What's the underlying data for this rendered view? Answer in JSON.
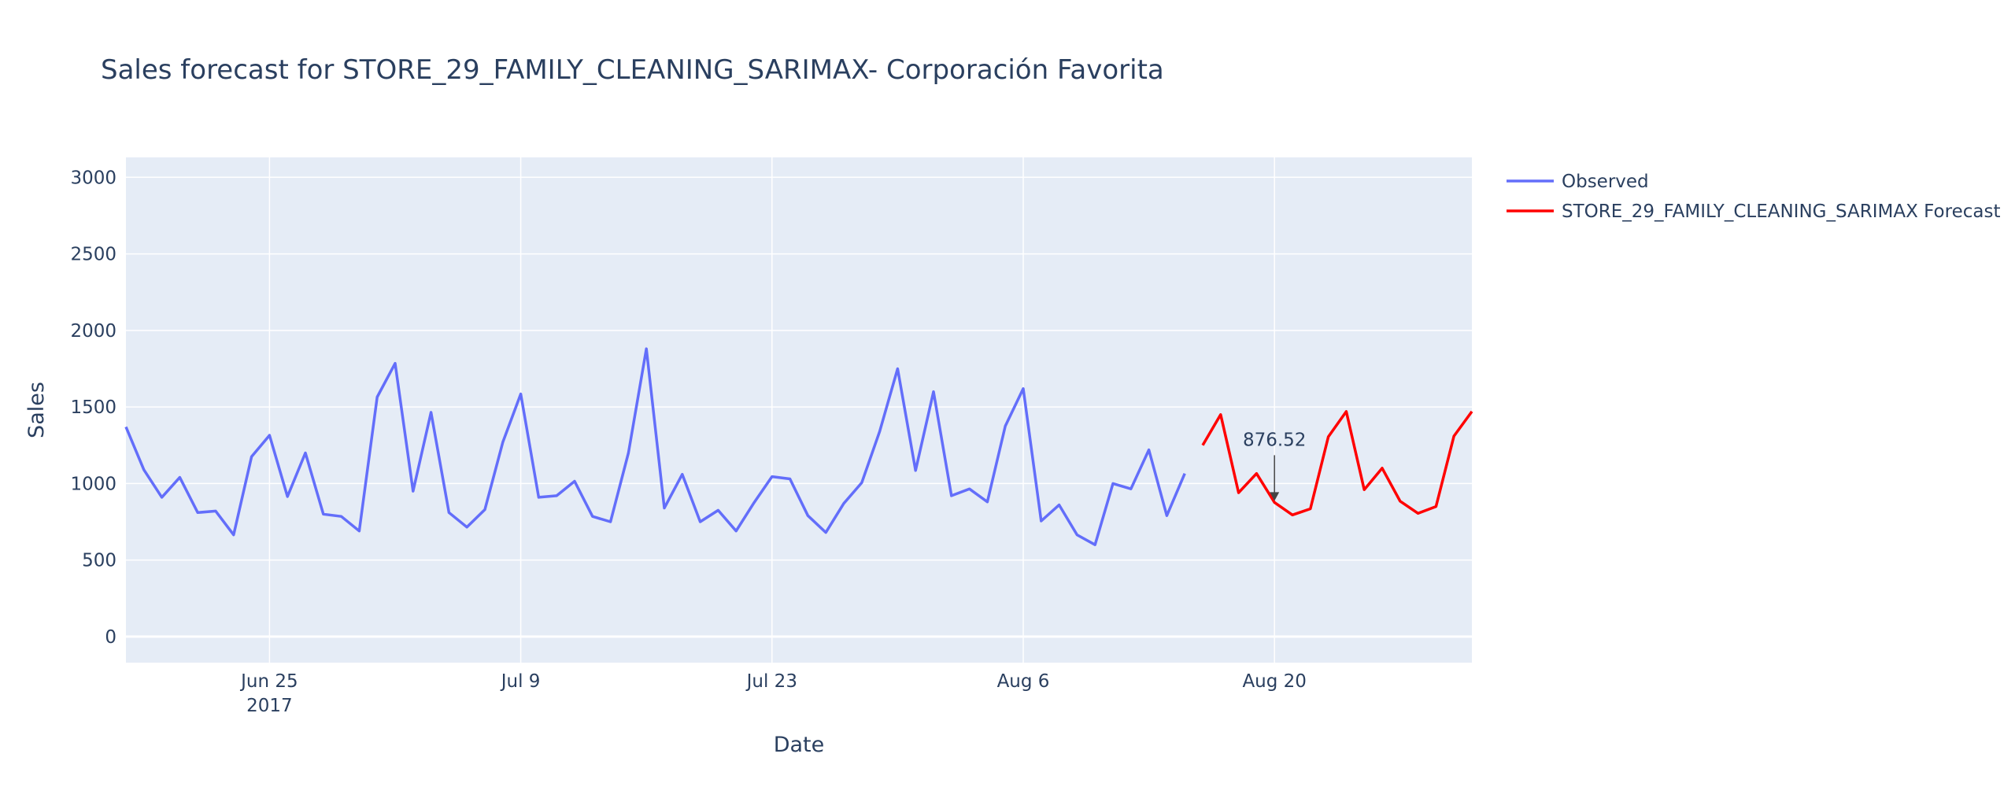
{
  "chart_data": {
    "type": "line",
    "title": "Sales forecast for STORE_29_FAMILY_CLEANING_SARIMAX- Corporación Favorita",
    "xlabel": "Date",
    "ylabel": "Sales",
    "ylim": [
      -170,
      3130
    ],
    "xlim": [
      "2017-06-17",
      "2017-08-31"
    ],
    "x_ticks": [
      {
        "date": "2017-06-25",
        "label": "Jun 25",
        "sublabel": "2017"
      },
      {
        "date": "2017-07-09",
        "label": "Jul 9",
        "sublabel": ""
      },
      {
        "date": "2017-07-23",
        "label": "Jul 23",
        "sublabel": ""
      },
      {
        "date": "2017-08-06",
        "label": "Aug 6",
        "sublabel": ""
      },
      {
        "date": "2017-08-20",
        "label": "Aug 20",
        "sublabel": ""
      }
    ],
    "y_ticks": [
      0,
      500,
      1000,
      1500,
      2000,
      2500,
      3000
    ],
    "grid": true,
    "legend_position": "top-right",
    "plot_background": "#e5ecf6",
    "series": [
      {
        "name": "Observed",
        "color": "#636efa",
        "x": [
          "2017-06-17",
          "2017-06-18",
          "2017-06-19",
          "2017-06-20",
          "2017-06-21",
          "2017-06-22",
          "2017-06-23",
          "2017-06-24",
          "2017-06-25",
          "2017-06-26",
          "2017-06-27",
          "2017-06-28",
          "2017-06-29",
          "2017-06-30",
          "2017-07-01",
          "2017-07-02",
          "2017-07-03",
          "2017-07-04",
          "2017-07-05",
          "2017-07-06",
          "2017-07-07",
          "2017-07-08",
          "2017-07-09",
          "2017-07-10",
          "2017-07-11",
          "2017-07-12",
          "2017-07-13",
          "2017-07-14",
          "2017-07-15",
          "2017-07-16",
          "2017-07-17",
          "2017-07-18",
          "2017-07-19",
          "2017-07-20",
          "2017-07-21",
          "2017-07-22",
          "2017-07-23",
          "2017-07-24",
          "2017-07-25",
          "2017-07-26",
          "2017-07-27",
          "2017-07-28",
          "2017-07-29",
          "2017-07-30",
          "2017-07-31",
          "2017-08-01",
          "2017-08-02",
          "2017-08-03",
          "2017-08-04",
          "2017-08-05",
          "2017-08-06",
          "2017-08-07",
          "2017-08-08",
          "2017-08-09",
          "2017-08-10",
          "2017-08-11",
          "2017-08-12",
          "2017-08-13",
          "2017-08-14",
          "2017-08-15"
        ],
        "values": [
          1370,
          1090,
          910,
          1040,
          810,
          820,
          665,
          1175,
          1315,
          915,
          1200,
          800,
          785,
          690,
          1565,
          1785,
          950,
          1465,
          810,
          715,
          830,
          1270,
          1585,
          910,
          920,
          1015,
          785,
          750,
          1200,
          1880,
          840,
          1060,
          750,
          825,
          690,
          875,
          1045,
          1030,
          790,
          680,
          870,
          1005,
          1340,
          1750,
          1085,
          1600,
          920,
          965,
          880,
          1375,
          1620,
          755,
          860,
          665,
          600,
          1000,
          965,
          1220,
          790,
          1065
        ]
      },
      {
        "name": "STORE_29_FAMILY_CLEANING_SARIMAX Forecast",
        "color": "#ff0000",
        "x": [
          "2017-08-16",
          "2017-08-17",
          "2017-08-18",
          "2017-08-19",
          "2017-08-20",
          "2017-08-21",
          "2017-08-22",
          "2017-08-23",
          "2017-08-24",
          "2017-08-25",
          "2017-08-26",
          "2017-08-27",
          "2017-08-28",
          "2017-08-29",
          "2017-08-30",
          "2017-08-31"
        ],
        "values": [
          1250,
          1450,
          940,
          1065,
          876.52,
          795,
          835,
          1305,
          1470,
          960,
          1100,
          885,
          805,
          850,
          1310,
          1470
        ]
      }
    ],
    "annotations": [
      {
        "date": "2017-08-20",
        "value": 876.52,
        "text": "876.52"
      }
    ]
  }
}
